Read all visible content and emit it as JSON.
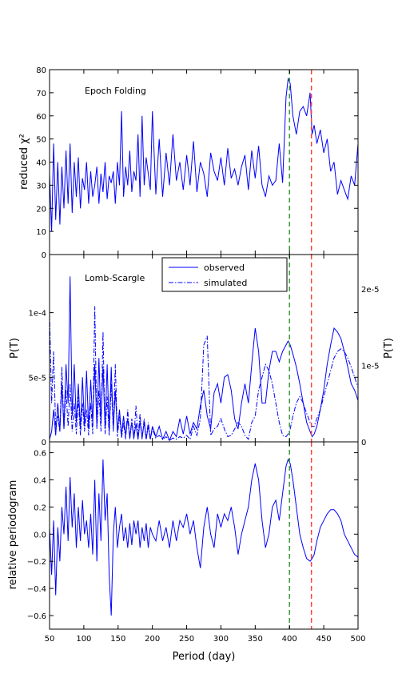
{
  "chart_data": [
    {
      "type": "line",
      "panel": "epoch-folding",
      "annotation": "Epoch Folding",
      "ylabel": "reduced χ²",
      "ylim": [
        0,
        80
      ],
      "yticks": [
        0,
        10,
        20,
        30,
        40,
        50,
        60,
        70,
        80
      ],
      "xlim": [
        50,
        500
      ],
      "x": [
        50,
        53,
        56,
        59,
        62,
        65,
        68,
        71,
        74,
        77,
        80,
        83,
        86,
        89,
        92,
        95,
        98,
        101,
        104,
        107,
        110,
        113,
        116,
        119,
        122,
        125,
        128,
        131,
        134,
        137,
        140,
        143,
        146,
        149,
        152,
        155,
        158,
        161,
        164,
        167,
        170,
        173,
        176,
        179,
        182,
        185,
        188,
        191,
        194,
        197,
        200,
        205,
        210,
        215,
        220,
        225,
        230,
        235,
        240,
        245,
        250,
        255,
        260,
        265,
        270,
        275,
        280,
        285,
        290,
        295,
        300,
        305,
        310,
        315,
        320,
        325,
        330,
        335,
        340,
        345,
        350,
        355,
        360,
        365,
        370,
        375,
        380,
        385,
        390,
        395,
        398,
        401,
        405,
        410,
        415,
        420,
        425,
        430,
        433,
        436,
        440,
        445,
        450,
        455,
        460,
        465,
        470,
        475,
        480,
        485,
        490,
        495,
        500
      ],
      "series": [
        {
          "name": "",
          "values": [
            35,
            10,
            48,
            15,
            40,
            13,
            38,
            20,
            45,
            22,
            48,
            18,
            40,
            25,
            42,
            20,
            33,
            28,
            40,
            22,
            36,
            25,
            30,
            38,
            22,
            35,
            27,
            40,
            24,
            34,
            31,
            36,
            22,
            40,
            30,
            62,
            25,
            38,
            30,
            45,
            27,
            36,
            32,
            52,
            25,
            60,
            30,
            42,
            35,
            28,
            62,
            26,
            50,
            25,
            44,
            30,
            52,
            32,
            40,
            28,
            43,
            30,
            49,
            27,
            40,
            35,
            25,
            44,
            36,
            32,
            42,
            30,
            46,
            33,
            37,
            30,
            38,
            43,
            28,
            45,
            33,
            47,
            30,
            25,
            34,
            30,
            32,
            48,
            31,
            68,
            76,
            74,
            60,
            52,
            62,
            64,
            60,
            70,
            52,
            56,
            48,
            54,
            44,
            50,
            36,
            40,
            26,
            32,
            28,
            24,
            34,
            30,
            48
          ]
        }
      ],
      "vlines": [
        {
          "x": 400,
          "color": "#3a9a3a",
          "style": "dashed"
        },
        {
          "x": 432,
          "color": "#ff4040",
          "style": "dashed"
        }
      ]
    },
    {
      "type": "line",
      "panel": "lomb-scargle",
      "annotation": "Lomb-Scargle",
      "ylabel": "P(T)",
      "ylabel_right": "P(T)",
      "ylim": [
        0,
        0.000145
      ],
      "yticks": [
        0,
        5e-05,
        0.0001
      ],
      "ytick_labels": [
        "0",
        "5e-5",
        "1e-4"
      ],
      "ylim_right": [
        0,
        2.45e-05
      ],
      "yticks_right": [
        0,
        1e-05,
        2e-05
      ],
      "ytick_labels_right": [
        "0",
        "1e-5",
        "2e-5"
      ],
      "xlim": [
        50,
        500
      ],
      "legend": {
        "placement": "top-center"
      },
      "x": [
        50,
        53,
        56,
        59,
        62,
        65,
        68,
        71,
        74,
        77,
        80,
        83,
        86,
        89,
        92,
        95,
        98,
        101,
        104,
        107,
        110,
        113,
        116,
        119,
        122,
        125,
        128,
        131,
        134,
        137,
        140,
        143,
        146,
        149,
        152,
        155,
        158,
        161,
        164,
        167,
        170,
        173,
        176,
        179,
        182,
        185,
        188,
        191,
        194,
        197,
        200,
        205,
        210,
        215,
        220,
        225,
        230,
        235,
        240,
        245,
        250,
        255,
        260,
        265,
        270,
        275,
        280,
        285,
        290,
        295,
        300,
        305,
        310,
        315,
        320,
        325,
        330,
        335,
        340,
        345,
        350,
        355,
        360,
        365,
        370,
        375,
        380,
        385,
        390,
        395,
        398,
        401,
        405,
        410,
        415,
        420,
        425,
        430,
        433,
        436,
        440,
        445,
        450,
        455,
        460,
        465,
        470,
        475,
        480,
        485,
        490,
        495,
        500
      ],
      "series": [
        {
          "name": "observed",
          "style": "solid",
          "axis": "left",
          "values": [
            2e-06,
            8e-06,
            2.5e-05,
            5e-06,
            3e-05,
            8e-06,
            4.5e-05,
            1e-05,
            6e-05,
            3e-05,
            0.000128,
            2e-05,
            6e-05,
            1.5e-05,
            4.5e-05,
            1e-05,
            5e-05,
            1.2e-05,
            5.5e-05,
            1e-05,
            4.8e-05,
            1.5e-05,
            6e-05,
            1.2e-05,
            6.5e-05,
            1.5e-05,
            5.8e-05,
            1e-05,
            6e-05,
            8e-06,
            5.8e-05,
            1e-05,
            4e-05,
            8e-06,
            2.5e-05,
            5e-06,
            2e-05,
            5e-06,
            1.8e-05,
            3e-06,
            1.5e-05,
            3e-06,
            1.4e-05,
            2e-06,
            1.6e-05,
            3e-06,
            1.5e-05,
            2e-06,
            1.2e-05,
            2e-06,
            1.2e-05,
            4e-06,
            1.2e-05,
            2e-06,
            8e-06,
            1e-06,
            8e-06,
            4e-06,
            1.8e-05,
            6e-06,
            2e-05,
            6e-06,
            1.5e-05,
            1e-05,
            2.8e-05,
            4e-05,
            2e-05,
            1e-05,
            3.8e-05,
            4.5e-05,
            3e-05,
            5e-05,
            5.2e-05,
            4e-05,
            1.8e-05,
            1e-05,
            3e-05,
            4.5e-05,
            3e-05,
            6e-05,
            8.8e-05,
            7e-05,
            3e-05,
            3e-05,
            5.5e-05,
            7e-05,
            7e-05,
            6.2e-05,
            7e-05,
            7.5e-05,
            7.8e-05,
            7.5e-05,
            6.8e-05,
            5.8e-05,
            4.5e-05,
            3e-05,
            1.5e-05,
            8e-06,
            4e-06,
            6e-06,
            1.2e-05,
            2.5e-05,
            4e-05,
            6e-05,
            7.5e-05,
            8.8e-05,
            8.5e-05,
            8e-05,
            7e-05,
            5.8e-05,
            4.5e-05,
            4e-05,
            3.2e-05
          ]
        },
        {
          "name": "simulated",
          "style": "dashdot",
          "axis": "left",
          "values": [
            0.0001,
            3e-05,
            7e-05,
            1e-05,
            2e-05,
            8e-06,
            5.8e-05,
            1e-05,
            4e-05,
            1.2e-05,
            4.5e-05,
            8e-06,
            3e-05,
            6e-06,
            3.5e-05,
            5e-06,
            3e-05,
            8e-06,
            2.5e-05,
            5e-06,
            3e-05,
            6e-06,
            0.000105,
            1e-05,
            4e-05,
            8e-06,
            8.5e-05,
            6e-06,
            3.5e-05,
            5e-06,
            4.5e-05,
            8e-06,
            6e-05,
            4e-06,
            2e-05,
            3e-06,
            1.5e-05,
            2e-06,
            2.5e-05,
            2e-06,
            1.8e-05,
            2e-06,
            2.8e-05,
            2e-06,
            2.2e-05,
            2e-06,
            1.8e-05,
            2e-06,
            1.5e-05,
            2e-06,
            1e-05,
            3e-06,
            5e-06,
            2e-06,
            4e-06,
            1e-06,
            3e-06,
            2e-06,
            4e-06,
            3e-06,
            5e-06,
            2e-06,
            1.2e-05,
            5e-06,
            1.8e-05,
            7.5e-05,
            8.2e-05,
            5e-06,
            1e-05,
            1.2e-05,
            1.8e-05,
            1e-05,
            4e-06,
            5e-06,
            1e-05,
            1.5e-05,
            1.2e-05,
            5e-06,
            2e-06,
            1.5e-05,
            2e-05,
            4e-05,
            5e-05,
            6e-05,
            5.5e-05,
            4.5e-05,
            3e-05,
            1.5e-05,
            5e-06,
            4e-06,
            6e-06,
            1e-05,
            2e-05,
            3e-05,
            3.5e-05,
            3e-05,
            2.2e-05,
            1.5e-05,
            1.2e-05,
            1.2e-05,
            1.8e-05,
            2.5e-05,
            3.5e-05,
            4.5e-05,
            5.5e-05,
            6.5e-05,
            7e-05,
            7.2e-05,
            7e-05,
            6.5e-05,
            5.8e-05,
            5e-05,
            4.2e-05
          ]
        }
      ],
      "vlines": [
        {
          "x": 400,
          "color": "#3a9a3a",
          "style": "dashed"
        },
        {
          "x": 432,
          "color": "#ff4040",
          "style": "dashed"
        }
      ]
    },
    {
      "type": "line",
      "panel": "relative-periodogram",
      "ylabel": "relative periodogram",
      "xlabel": "Period (day)",
      "ylim": [
        -0.7,
        0.68
      ],
      "yticks": [
        -0.6,
        -0.4,
        -0.2,
        0.0,
        0.2,
        0.4,
        0.6
      ],
      "ytick_labels": [
        "−0.6",
        "−0.4",
        "−0.2",
        "0.0",
        "0.2",
        "0.4",
        "0.6"
      ],
      "xlim": [
        50,
        500
      ],
      "xticks": [
        50,
        100,
        150,
        200,
        250,
        300,
        350,
        400,
        450,
        500
      ],
      "x": [
        50,
        53,
        56,
        59,
        62,
        65,
        68,
        71,
        74,
        77,
        80,
        83,
        86,
        89,
        92,
        95,
        98,
        101,
        104,
        107,
        110,
        113,
        116,
        119,
        122,
        125,
        128,
        131,
        134,
        137,
        140,
        143,
        146,
        149,
        152,
        155,
        158,
        161,
        164,
        167,
        170,
        173,
        176,
        179,
        182,
        185,
        188,
        191,
        194,
        197,
        200,
        205,
        210,
        215,
        220,
        225,
        230,
        235,
        240,
        245,
        250,
        255,
        260,
        265,
        270,
        275,
        280,
        285,
        290,
        295,
        300,
        305,
        310,
        315,
        320,
        325,
        330,
        335,
        340,
        345,
        350,
        355,
        360,
        365,
        370,
        375,
        380,
        385,
        390,
        395,
        398,
        401,
        405,
        410,
        415,
        420,
        425,
        430,
        433,
        436,
        440,
        445,
        450,
        455,
        460,
        465,
        470,
        475,
        480,
        485,
        490,
        495,
        500
      ],
      "series": [
        {
          "name": "",
          "values": [
            0.05,
            -0.3,
            0.1,
            -0.45,
            0.05,
            -0.2,
            0.2,
            0.0,
            0.35,
            -0.05,
            0.42,
            0.05,
            0.3,
            -0.1,
            0.2,
            -0.05,
            0.25,
            0.0,
            0.1,
            -0.1,
            0.15,
            -0.15,
            0.4,
            -0.2,
            0.3,
            -0.05,
            0.55,
            0.1,
            0.3,
            -0.3,
            -0.6,
            0.0,
            0.2,
            -0.1,
            0.05,
            0.15,
            -0.05,
            0.05,
            -0.1,
            0.08,
            -0.08,
            0.1,
            0.0,
            0.1,
            -0.1,
            0.05,
            -0.05,
            0.08,
            -0.1,
            0.05,
            0.0,
            -0.05,
            0.1,
            -0.05,
            0.05,
            -0.1,
            0.1,
            -0.05,
            0.1,
            0.05,
            0.15,
            0.0,
            0.1,
            -0.1,
            -0.25,
            0.05,
            0.2,
            0.0,
            -0.1,
            0.15,
            0.05,
            0.15,
            0.1,
            0.2,
            0.05,
            -0.15,
            0.0,
            0.1,
            0.2,
            0.4,
            0.52,
            0.4,
            0.1,
            -0.1,
            0.0,
            0.2,
            0.25,
            0.1,
            0.3,
            0.5,
            0.55,
            0.52,
            0.4,
            0.2,
            0.0,
            -0.1,
            -0.18,
            -0.2,
            -0.18,
            -0.15,
            -0.05,
            0.05,
            0.1,
            0.15,
            0.18,
            0.18,
            0.15,
            0.1,
            0.0,
            -0.05,
            -0.1,
            -0.15,
            -0.17
          ]
        }
      ],
      "vlines": [
        {
          "x": 400,
          "color": "#3a9a3a",
          "style": "dashed"
        },
        {
          "x": 432,
          "color": "#ff4040",
          "style": "dashed"
        }
      ]
    }
  ],
  "colors": {
    "line": "#0000ff",
    "green_marker": "#3a9a3a",
    "red_marker": "#ff4040"
  }
}
